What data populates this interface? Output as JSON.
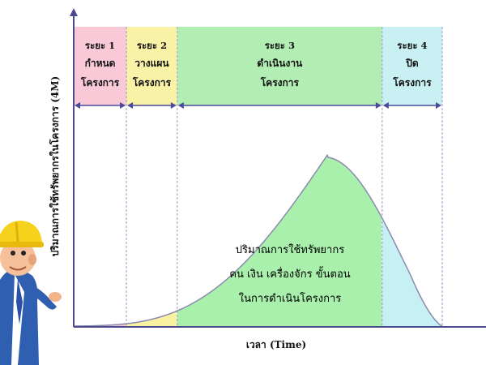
{
  "diagram": {
    "y_axis_label": "ปริมาณการใช้ทรัพยากรในโครงการ (4M)",
    "x_axis_label": "เวลา (Time)",
    "phases": [
      {
        "label": "ระยะ 1",
        "line1": "กำหนด",
        "line2": "โครงการ",
        "color": "#f9c9d8",
        "curve_color": "#f7c4d6",
        "x_start": 0.0,
        "x_end": 0.143
      },
      {
        "label": "ระยะ 2",
        "line1": "วางแผน",
        "line2": "โครงการ",
        "color": "#f9f3a8",
        "curve_color": "#f8f2a2",
        "x_start": 0.143,
        "x_end": 0.281
      },
      {
        "label": "ระยะ 3",
        "line1": "ดำเนินงาน",
        "line2": "โครงการ",
        "color": "#b2eeb4",
        "curve_color": "#a8f0ac",
        "x_start": 0.281,
        "x_end": 0.837
      },
      {
        "label": "ระยะ 4",
        "line1": "ปิด",
        "line2": "โครงการ",
        "color": "#c9f1f4",
        "curve_color": "#c6f0f4",
        "x_start": 0.837,
        "x_end": 1.0
      }
    ],
    "center_text": [
      "ปริมาณการใช้ทรัพยากร",
      "คน เงิน เครื่องจักร ขั้นตอน",
      "ในการดำเนินโครงการ"
    ],
    "colors": {
      "axis": "#4a4a8a",
      "curve_outline": "#8a8ab0",
      "arrow": "#4a4a9a",
      "divider": "#9a9ac0"
    }
  }
}
